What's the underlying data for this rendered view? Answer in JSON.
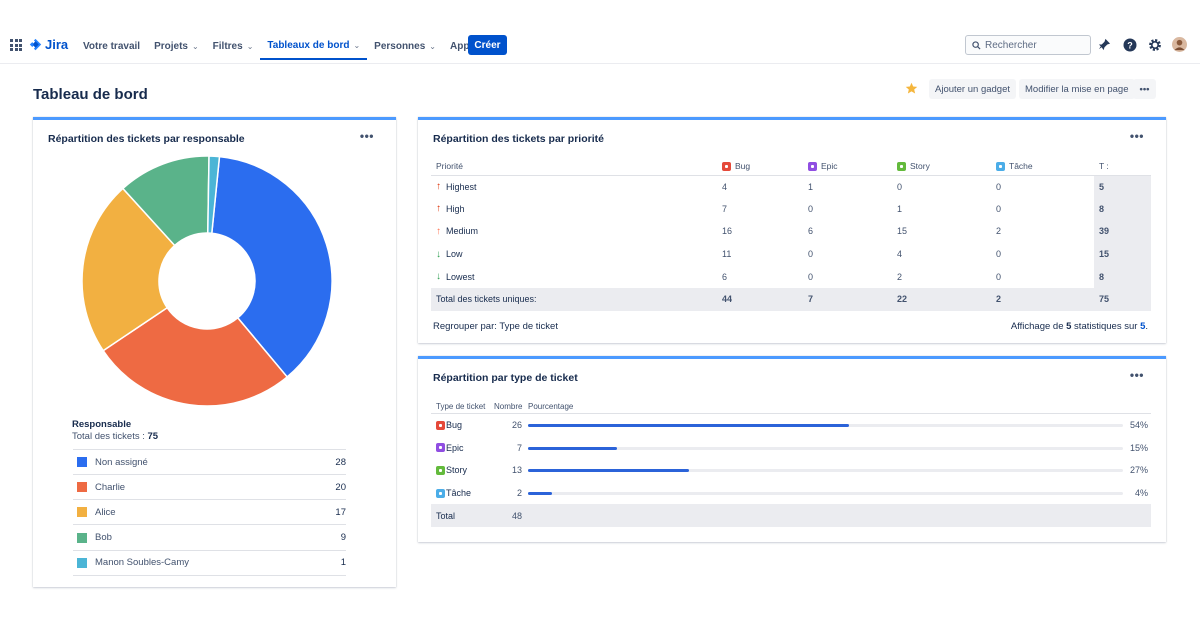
{
  "nav": {
    "logo": "Jira",
    "items": [
      {
        "label": "Votre travail",
        "dropdown": false,
        "active": false
      },
      {
        "label": "Projets",
        "dropdown": true,
        "active": false
      },
      {
        "label": "Filtres",
        "dropdown": true,
        "active": false
      },
      {
        "label": "Tableaux de bord",
        "dropdown": true,
        "active": true
      },
      {
        "label": "Personnes",
        "dropdown": true,
        "active": false
      },
      {
        "label": "Appli",
        "dropdown": true,
        "active": false
      }
    ],
    "create_label": "Créer",
    "search_placeholder": "Rechercher"
  },
  "header": {
    "title": "Tableau de bord",
    "add_gadget": "Ajouter un gadget",
    "edit_layout": "Modifier la mise en page",
    "more": "•••"
  },
  "assignee_gadget": {
    "title": "Répartition des tickets par responsable",
    "legend_title": "Responsable",
    "total_label": "Total des tickets : ",
    "total_value": "75",
    "chart_data": {
      "type": "pie",
      "categories": [
        "Non assigné",
        "Charlie",
        "Alice",
        "Bob",
        "Manon Soubles-Camy"
      ],
      "values": [
        28,
        20,
        17,
        9,
        1
      ],
      "colors": [
        "#2b6def",
        "#ee6a43",
        "#f2b041",
        "#5ab38a",
        "#4bb5d6"
      ]
    },
    "rows": [
      {
        "name": "Non assigné",
        "count": "28",
        "color": "#2b6def"
      },
      {
        "name": "Charlie",
        "count": "20",
        "color": "#ee6a43"
      },
      {
        "name": "Alice",
        "count": "17",
        "color": "#f2b041"
      },
      {
        "name": "Bob",
        "count": "9",
        "color": "#5ab38a"
      },
      {
        "name": "Manon Soubles-Camy",
        "count": "1",
        "color": "#4bb5d6"
      }
    ]
  },
  "priority_gadget": {
    "title": "Répartition des tickets par priorité",
    "headers": {
      "priority": "Priorité",
      "bug": "Bug",
      "epic": "Epic",
      "story": "Story",
      "task": "Tâche",
      "total": "T :"
    },
    "rows": [
      {
        "priority": "Highest",
        "arrow": "up",
        "bug": "4",
        "epic": "1",
        "story": "0",
        "task": "0",
        "total": "5"
      },
      {
        "priority": "High",
        "arrow": "up",
        "bug": "7",
        "epic": "0",
        "story": "1",
        "task": "0",
        "total": "8"
      },
      {
        "priority": "Medium",
        "arrow": "med",
        "bug": "16",
        "epic": "6",
        "story": "15",
        "task": "2",
        "total": "39"
      },
      {
        "priority": "Low",
        "arrow": "down",
        "bug": "11",
        "epic": "0",
        "story": "4",
        "task": "0",
        "total": "15"
      },
      {
        "priority": "Lowest",
        "arrow": "down",
        "bug": "6",
        "epic": "0",
        "story": "2",
        "task": "0",
        "total": "8"
      }
    ],
    "summary": {
      "label": "Total des tickets uniques:",
      "bug": "44",
      "epic": "7",
      "story": "22",
      "task": "2",
      "total": "75"
    },
    "group_label": "Regrouper par: Type de ticket",
    "stats_prefix": "Affichage de ",
    "stats_shown": "5",
    "stats_middle": " statistiques sur ",
    "stats_total": "5",
    "stats_suffix": "."
  },
  "type_gadget": {
    "title": "Répartition par type de ticket",
    "headers": {
      "type": "Type de ticket",
      "count": "Nombre",
      "percent": "Pourcentage"
    },
    "rows": [
      {
        "type": "Bug",
        "count": "26",
        "percent": "54%",
        "fraction": 0.54,
        "color": "#e5493a"
      },
      {
        "type": "Epic",
        "count": "7",
        "percent": "15%",
        "fraction": 0.15,
        "color": "#904ee2"
      },
      {
        "type": "Story",
        "count": "13",
        "percent": "27%",
        "fraction": 0.27,
        "color": "#63ba3c"
      },
      {
        "type": "Tâche",
        "count": "2",
        "percent": "4%",
        "fraction": 0.04,
        "color": "#4bade8"
      }
    ],
    "total_label": "Total",
    "total_value": "48"
  },
  "type_colors": {
    "bug": "#e5493a",
    "epic": "#904ee2",
    "story": "#63ba3c",
    "task": "#4bade8"
  }
}
